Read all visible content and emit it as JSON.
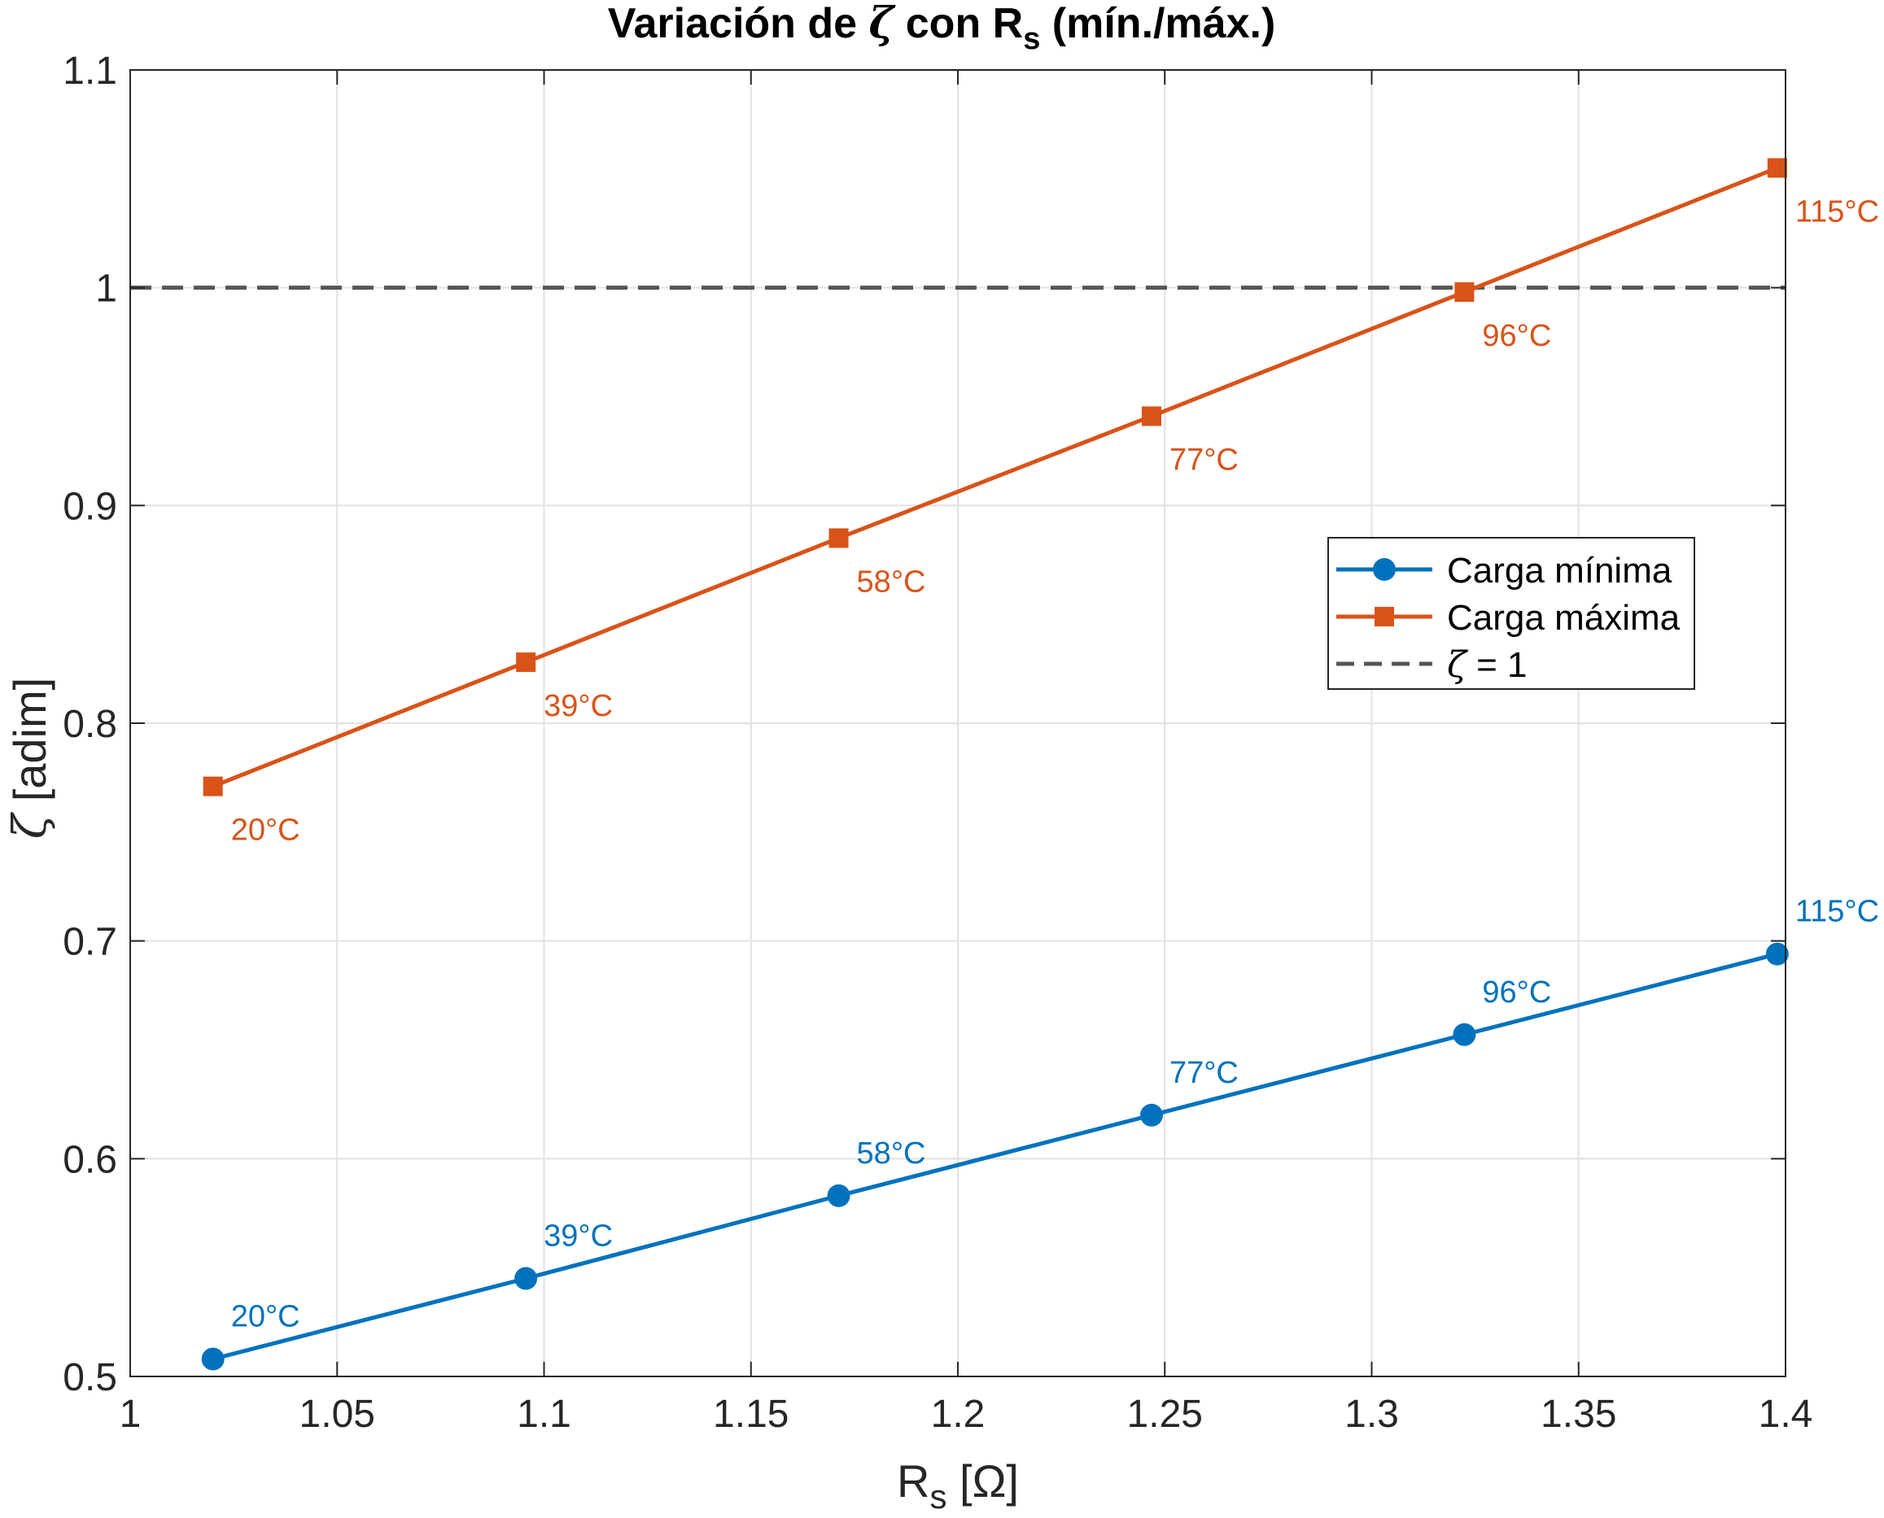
{
  "chart_data": {
    "type": "line",
    "title": {
      "prefix": "Variación de ",
      "symbol": "ζ",
      "middle": " con R",
      "subscript": "s",
      "suffix": " (mín./máx.)"
    },
    "xlabel": {
      "main": "R",
      "subscript": "s",
      "unit": " [Ω]"
    },
    "ylabel": {
      "symbol": "ζ",
      "text": " [adim]"
    },
    "xlim": [
      1,
      1.4
    ],
    "ylim": [
      0.5,
      1.1
    ],
    "xticks": [
      1,
      1.05,
      1.1,
      1.15,
      1.2,
      1.25,
      1.3,
      1.35,
      1.4
    ],
    "xtick_labels": [
      "1",
      "1.05",
      "1.1",
      "1.15",
      "1.2",
      "1.25",
      "1.3",
      "1.35",
      "1.4"
    ],
    "yticks": [
      0.5,
      0.6,
      0.7,
      0.8,
      0.9,
      1,
      1.1
    ],
    "ytick_labels": [
      "0.5",
      "0.6",
      "0.7",
      "0.8",
      "0.9",
      "1",
      "1.1"
    ],
    "grid": true,
    "legend_position": "right, upper-middle",
    "x": [
      1.02,
      1.0956,
      1.1712,
      1.2468,
      1.3224,
      1.398
    ],
    "point_labels": [
      "20°C",
      "39°C",
      "58°C",
      "77°C",
      "96°C",
      "115°C"
    ],
    "series": [
      {
        "name": "Carga mínima",
        "color": "#0072BD",
        "marker": "circle",
        "label_side": "above",
        "values": [
          0.508,
          0.545,
          0.583,
          0.62,
          0.657,
          0.694
        ]
      },
      {
        "name": "Carga máxima",
        "color": "#D95319",
        "marker": "square",
        "label_side": "below",
        "values": [
          0.771,
          0.828,
          0.885,
          0.941,
          0.998,
          1.055
        ]
      }
    ],
    "reference_line": {
      "name_symbol": "ζ",
      "name_text": " = 1",
      "value": 1,
      "color": "#555555",
      "style": "dashed"
    }
  }
}
